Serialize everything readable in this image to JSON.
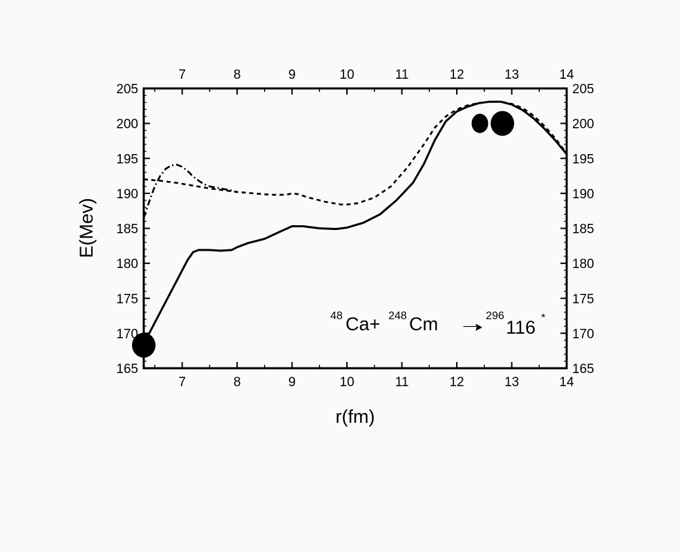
{
  "chart_data": {
    "type": "line",
    "title": "",
    "xlabel": "r(fm)",
    "ylabel": "E(Mev)",
    "xlim": [
      6.3,
      14
    ],
    "ylim": [
      165,
      205
    ],
    "xticks": [
      7,
      8,
      9,
      10,
      11,
      12,
      13,
      14
    ],
    "yticks": [
      165,
      170,
      175,
      180,
      185,
      190,
      195,
      200,
      205
    ],
    "x_tick_labels": [
      "7",
      "8",
      "9",
      "10",
      "11",
      "12",
      "13",
      "14"
    ],
    "y_tick_labels": [
      "165",
      "170",
      "175",
      "180",
      "185",
      "190",
      "195",
      "200",
      "205"
    ],
    "mirror_axes": true,
    "grid": false,
    "annotation": {
      "parts": [
        {
          "sup": "48",
          "text": "Ca+"
        },
        {
          "sup": "248",
          "text": "Cm"
        },
        {
          "sup": "",
          "text": "→",
          "arrow": true
        },
        {
          "sup": "296",
          "text": "116"
        },
        {
          "sup": "*",
          "text": ""
        }
      ]
    },
    "series": [
      {
        "style": "solid",
        "x": [
          6.3,
          6.5,
          6.7,
          6.9,
          7.0,
          7.1,
          7.2,
          7.3,
          7.5,
          7.7,
          7.9,
          8.0,
          8.2,
          8.5,
          8.8,
          9.0,
          9.2,
          9.5,
          9.8,
          10.0,
          10.3,
          10.6,
          10.9,
          11.2,
          11.4,
          11.6,
          11.8,
          12.0,
          12.2,
          12.4,
          12.6,
          12.8,
          13.0,
          13.2,
          13.4,
          13.6,
          13.8,
          14.0
        ],
        "y": [
          168.5,
          171.5,
          174.5,
          177.5,
          179.0,
          180.5,
          181.6,
          181.9,
          181.9,
          181.8,
          181.9,
          182.3,
          182.9,
          183.5,
          184.6,
          185.3,
          185.3,
          185.0,
          184.9,
          185.1,
          185.8,
          187.0,
          189.0,
          191.5,
          194.2,
          197.6,
          200.3,
          201.7,
          202.4,
          202.9,
          203.1,
          203.1,
          202.7,
          201.9,
          200.7,
          199.2,
          197.5,
          195.6
        ]
      },
      {
        "style": "dashed",
        "x": [
          6.3,
          6.6,
          6.9,
          7.2,
          7.5,
          7.8,
          8.0,
          8.3,
          8.6,
          8.9,
          9.0,
          9.1,
          9.3,
          9.6,
          9.9,
          10.0,
          10.2,
          10.5,
          10.8,
          11.1,
          11.4,
          11.6,
          11.8,
          12.0,
          12.2,
          12.4,
          12.6,
          12.8,
          13.0,
          13.2,
          13.4,
          13.6,
          13.8,
          14.0
        ],
        "y": [
          192.0,
          191.8,
          191.5,
          191.1,
          190.7,
          190.4,
          190.2,
          190.0,
          189.8,
          189.8,
          190.0,
          189.9,
          189.4,
          188.8,
          188.4,
          188.4,
          188.6,
          189.4,
          191.0,
          193.7,
          197.0,
          199.4,
          201.0,
          202.0,
          202.6,
          202.9,
          203.1,
          203.1,
          202.8,
          202.2,
          201.1,
          199.6,
          197.8,
          195.7
        ]
      },
      {
        "style": "dash-dot",
        "x": [
          6.3,
          6.4,
          6.5,
          6.6,
          6.7,
          6.8,
          6.9,
          7.0,
          7.1,
          7.2,
          7.3,
          7.4,
          7.5,
          7.7,
          7.9,
          8.0
        ],
        "y": [
          186.5,
          188.8,
          191.0,
          192.5,
          193.5,
          194.0,
          194.1,
          193.8,
          193.2,
          192.4,
          191.8,
          191.3,
          191.0,
          190.7,
          190.4,
          190.2
        ]
      }
    ],
    "markers": [
      {
        "x": 6.3,
        "y": 168.3,
        "size": "large"
      },
      {
        "x": 12.42,
        "y": 200.0,
        "size": "small"
      },
      {
        "x": 12.83,
        "y": 200.0,
        "size": "large"
      }
    ]
  }
}
